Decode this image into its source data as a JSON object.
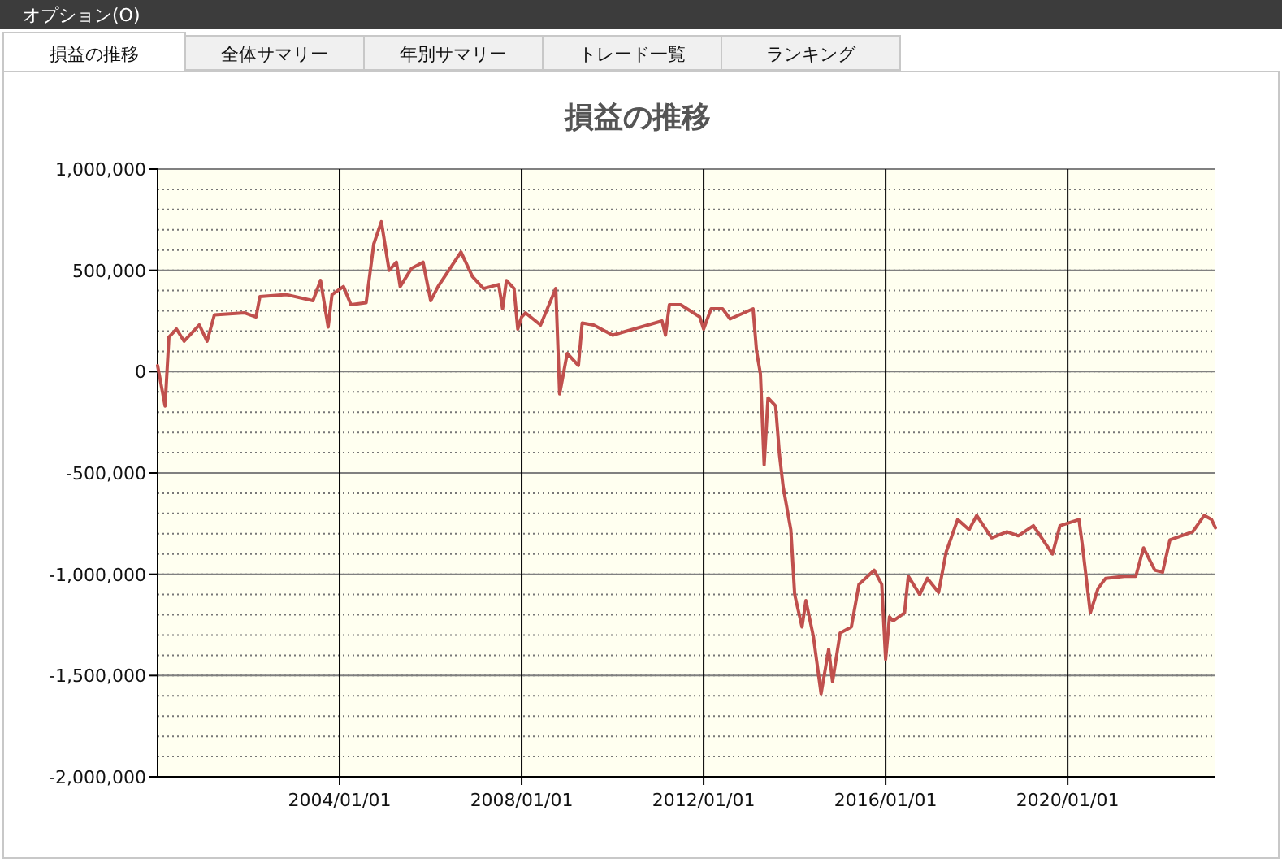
{
  "chart_data": {
    "type": "line",
    "title": "損益の推移",
    "annotations": [
      "オプション(O)",
      "損益の推移",
      "全体サマリー",
      "年別サマリー",
      "トレード一覧",
      "ランキング"
    ],
    "x": [
      "2000-01",
      "2000-03",
      "2000-04",
      "2000-06",
      "2000-08",
      "2000-12",
      "2001-02",
      "2001-04",
      "2001-12",
      "2002-03",
      "2002-04",
      "2002-11",
      "2003-06",
      "2003-08",
      "2003-10",
      "2003-11",
      "2004-02",
      "2004-04",
      "2004-08",
      "2004-10",
      "2004-12",
      "2005-02",
      "2005-04",
      "2005-05",
      "2005-08",
      "2005-11",
      "2006-01",
      "2006-03",
      "2006-09",
      "2006-12",
      "2007-03",
      "2007-07",
      "2007-08",
      "2007-09",
      "2007-11",
      "2007-12",
      "2008-01",
      "2008-02",
      "2008-06",
      "2008-10",
      "2008-11",
      "2009-01",
      "2009-04",
      "2009-05",
      "2009-08",
      "2010-01",
      "2011-02",
      "2011-03",
      "2011-04",
      "2011-07",
      "2011-12",
      "2012-01",
      "2012-03",
      "2012-06",
      "2012-08",
      "2013-02",
      "2013-03",
      "2013-04",
      "2013-05",
      "2013-06",
      "2013-08",
      "2013-09",
      "2013-10",
      "2013-12",
      "2014-01",
      "2014-03",
      "2014-04",
      "2014-06",
      "2014-08",
      "2014-10",
      "2014-11",
      "2015-01",
      "2015-04",
      "2015-06",
      "2015-10",
      "2015-12",
      "2016-01",
      "2016-02",
      "2016-03",
      "2016-06",
      "2016-07",
      "2016-10",
      "2016-12",
      "2017-03",
      "2017-05",
      "2017-08",
      "2017-11",
      "2018-01",
      "2018-05",
      "2018-09",
      "2018-12",
      "2019-04",
      "2019-09",
      "2019-11",
      "2020-04",
      "2020-05",
      "2020-07",
      "2020-09",
      "2020-11",
      "2021-04",
      "2021-07",
      "2021-09",
      "2021-12",
      "2022-02",
      "2022-04",
      "2022-10",
      "2023-01",
      "2023-03",
      "2023-04"
    ],
    "series": [
      {
        "color": "#c0504d",
        "values": [
          30000,
          -170000,
          170000,
          210000,
          150000,
          230000,
          150000,
          280000,
          290000,
          270000,
          370000,
          380000,
          350000,
          450000,
          220000,
          380000,
          420000,
          330000,
          340000,
          630000,
          740000,
          500000,
          540000,
          420000,
          510000,
          540000,
          350000,
          420000,
          590000,
          470000,
          410000,
          430000,
          310000,
          450000,
          410000,
          210000,
          270000,
          290000,
          230000,
          410000,
          -110000,
          90000,
          30000,
          240000,
          230000,
          180000,
          250000,
          180000,
          330000,
          330000,
          270000,
          210000,
          310000,
          310000,
          260000,
          310000,
          100000,
          -10000,
          -460000,
          -130000,
          -170000,
          -410000,
          -570000,
          -780000,
          -1100000,
          -1260000,
          -1130000,
          -1310000,
          -1590000,
          -1370000,
          -1530000,
          -1290000,
          -1260000,
          -1050000,
          -980000,
          -1050000,
          -1420000,
          -1210000,
          -1230000,
          -1190000,
          -1010000,
          -1100000,
          -1020000,
          -1090000,
          -890000,
          -730000,
          -780000,
          -710000,
          -820000,
          -790000,
          -810000,
          -760000,
          -900000,
          -760000,
          -730000,
          -870000,
          -1190000,
          -1070000,
          -1020000,
          -1010000,
          -1010000,
          -870000,
          -980000,
          -990000,
          -830000,
          -790000,
          -710000,
          -730000,
          -770000
        ]
      }
    ],
    "xlim": [
      "2000-01",
      "2023-04"
    ],
    "xticks": [
      {
        "value": "2004-01-01",
        "label": "2004/01/01"
      },
      {
        "value": "2008-01-01",
        "label": "2008/01/01"
      },
      {
        "value": "2012-01-01",
        "label": "2012/01/01"
      },
      {
        "value": "2016-01-01",
        "label": "2016/01/01"
      },
      {
        "value": "2020-01-01",
        "label": "2020/01/01"
      }
    ],
    "ylim": [
      -2000000,
      1000000
    ],
    "yticks": [
      {
        "value": 1000000,
        "label": "1,000,000"
      },
      {
        "value": 500000,
        "label": "500,000"
      },
      0,
      {
        "value": -500000,
        "label": "-500,000"
      },
      {
        "value": -1000000,
        "label": "-1,000,000"
      },
      {
        "value": -1500000,
        "label": "-1,500,000"
      },
      {
        "value": -2000000,
        "label": "-2,000,000"
      }
    ],
    "grid": true,
    "line_style": "solid",
    "marker": "none"
  }
}
